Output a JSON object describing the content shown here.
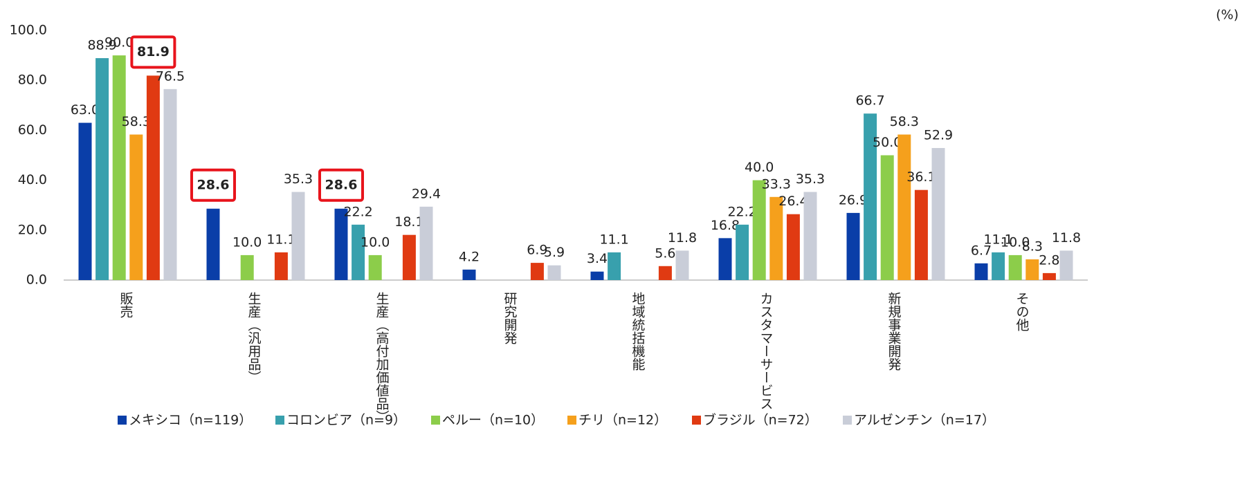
{
  "chart_data": {
    "type": "bar",
    "unit": "(%)",
    "categories": [
      "販売",
      "生産（汎用品）",
      "生産（高付加価値品）",
      "研究開発",
      "地域統括機能",
      "カスタマーサービス",
      "新規事業開発",
      "その他"
    ],
    "series": [
      {
        "name": "メキシコ（n=119）",
        "color": "#0a3ea8",
        "values": [
          63.0,
          28.6,
          28.6,
          4.2,
          3.4,
          16.8,
          26.9,
          6.7
        ],
        "value_labels": [
          "63.0",
          "28.6",
          "28.6",
          "4.2",
          "3.4",
          "16.8",
          "26.9",
          "6.7"
        ],
        "highlight": [
          1,
          2
        ]
      },
      {
        "name": "コロンビア（n=9）",
        "color": "#38a0ad",
        "values": [
          88.9,
          null,
          22.2,
          null,
          11.1,
          22.2,
          66.7,
          11.1
        ],
        "value_labels": [
          "88.9",
          null,
          "22.2",
          null,
          "11.1",
          "22.2",
          "66.7",
          "11.1"
        ],
        "highlight": []
      },
      {
        "name": "ペルー（n=10）",
        "color": "#8ccd4a",
        "values": [
          90.0,
          10.0,
          10.0,
          null,
          null,
          40.0,
          50.0,
          10.0
        ],
        "value_labels": [
          "90.0",
          "10.0",
          "10.0",
          null,
          null,
          "40.0",
          "50.0",
          "10.0"
        ],
        "highlight": []
      },
      {
        "name": "チリ（n=12）",
        "color": "#f5a01c",
        "values": [
          58.3,
          null,
          null,
          null,
          null,
          33.3,
          58.3,
          8.3
        ],
        "value_labels": [
          "58.3",
          null,
          null,
          null,
          null,
          "33.3",
          "58.3",
          "8.3"
        ],
        "highlight": []
      },
      {
        "name": "ブラジル（n=72）",
        "color": "#e03a12",
        "values": [
          81.9,
          11.1,
          18.1,
          6.9,
          5.6,
          26.4,
          36.1,
          2.8
        ],
        "value_labels": [
          "81.9",
          "11.1",
          "18.1",
          "6.9",
          "5.6",
          "26.4",
          "36.1",
          "2.8"
        ],
        "highlight": [
          0
        ]
      },
      {
        "name": "アルゼンチン（n=17）",
        "color": "#c9cdd8",
        "values": [
          76.5,
          35.3,
          29.4,
          5.9,
          11.8,
          35.3,
          52.9,
          11.8
        ],
        "value_labels": [
          "76.5",
          "35.3",
          "29.4",
          "5.9",
          "11.8",
          "35.3",
          "52.9",
          "11.8"
        ],
        "highlight": []
      }
    ],
    "ylim": [
      0,
      100
    ],
    "yticks": [
      {
        "value": 0,
        "label": "0.0"
      },
      {
        "value": 20,
        "label": "20.0"
      },
      {
        "value": 40,
        "label": "40.0"
      },
      {
        "value": 60,
        "label": "60.0"
      },
      {
        "value": 80,
        "label": "80.0"
      },
      {
        "value": 100,
        "label": "100.0"
      }
    ],
    "legend": "bottom"
  }
}
